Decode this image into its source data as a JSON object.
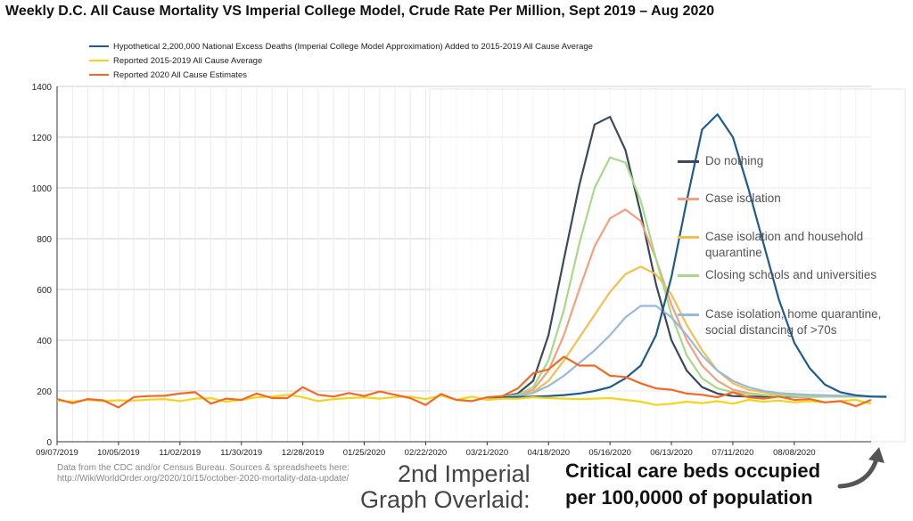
{
  "title": "Weekly D.C. All Cause Mortality VS Imperial College Model, Crude Rate Per Million, Sept 2019 – Aug 2020",
  "chart_data": {
    "type": "line",
    "title": "Weekly D.C. All Cause Mortality VS Imperial College Model, Crude Rate Per Million, Sept 2019 – Aug 2020",
    "ylim": [
      0,
      1400
    ],
    "yticks": [
      0,
      200,
      400,
      600,
      800,
      1000,
      1200,
      1400
    ],
    "grid": true,
    "legend_position": "top-left",
    "x_tick_labels": [
      "09/07/2019",
      "10/05/2019",
      "11/02/2019",
      "11/30/2019",
      "12/28/2019",
      "01/25/2020",
      "02/22/2020",
      "03/21/2020",
      "04/18/2020",
      "05/16/2020",
      "06/13/2020",
      "07/11/2020",
      "08/08/2020"
    ],
    "series": [
      {
        "name": "Hypothetical 2,200,000 National Excess Deaths (Imperial College Model Approximation) Added to 2015-2019 All Cause Average",
        "color": "#1f5b8c",
        "start_week": 28,
        "values": [
          175,
          175,
          176,
          178,
          180,
          184,
          190,
          200,
          215,
          250,
          300,
          420,
          650,
          950,
          1230,
          1290,
          1200,
          1000,
          780,
          560,
          390,
          290,
          225,
          195,
          183,
          178,
          177
        ]
      },
      {
        "name": "Reported 2015-2019 All Cause Average",
        "color": "#f2d41c",
        "start_week": 0,
        "values": [
          162,
          158,
          165,
          160,
          163,
          162,
          166,
          168,
          160,
          170,
          172,
          158,
          165,
          175,
          178,
          185,
          175,
          160,
          168,
          172,
          175,
          170,
          176,
          178,
          168,
          182,
          165,
          178,
          165,
          170,
          170,
          175,
          172,
          170,
          168,
          170,
          172,
          165,
          158,
          145,
          150,
          158,
          152,
          160,
          150,
          165,
          158,
          162,
          155,
          160,
          155,
          160,
          165,
          150
        ]
      },
      {
        "name": "Reported 2020 All Cause Estimates",
        "color": "#f06a25",
        "start_week": 0,
        "values": [
          168,
          152,
          168,
          163,
          135,
          176,
          180,
          181,
          190,
          195,
          150,
          170,
          165,
          190,
          172,
          172,
          215,
          185,
          178,
          192,
          180,
          198,
          185,
          172,
          145,
          188,
          165,
          160,
          175,
          180,
          210,
          270,
          285,
          335,
          300,
          300,
          260,
          255,
          230,
          210,
          205,
          190,
          185,
          175,
          195,
          175,
          170,
          178,
          165,
          168,
          155,
          160,
          140,
          165
        ]
      }
    ],
    "overlay": {
      "label": "2nd Imperial Graph Overlaid: Critical care beds occupied per 100,0000 of population",
      "series": [
        {
          "name": "Do nothing",
          "color": "#3a4a5a",
          "values": [
            175,
            178,
            190,
            240,
            420,
            720,
            1010,
            1250,
            1280,
            1150,
            900,
            620,
            400,
            280,
            215,
            190,
            180,
            178,
            178,
            178,
            178,
            178,
            178,
            178,
            178,
            178,
            178
          ]
        },
        {
          "name": "Case isolation",
          "color": "#f2a080",
          "values": [
            175,
            176,
            182,
            205,
            280,
            420,
            600,
            770,
            880,
            915,
            870,
            720,
            540,
            400,
            300,
            240,
            205,
            192,
            185,
            182,
            180,
            179,
            178,
            178,
            178,
            178,
            178
          ]
        },
        {
          "name": "Case isolation and household quarantine",
          "color": "#f2c050",
          "values": [
            175,
            176,
            180,
            195,
            240,
            320,
            410,
            500,
            590,
            660,
            690,
            660,
            580,
            460,
            360,
            280,
            230,
            205,
            195,
            188,
            184,
            182,
            180,
            179,
            178,
            178,
            178
          ]
        },
        {
          "name": "Closing schools and universities",
          "color": "#a8d98a",
          "values": [
            175,
            177,
            185,
            215,
            320,
            520,
            780,
            1000,
            1120,
            1100,
            950,
            720,
            500,
            340,
            250,
            210,
            195,
            188,
            184,
            182,
            180,
            179,
            178,
            178,
            178,
            178,
            178
          ]
        },
        {
          "name": "Case isolation, home quarantine, social distancing of >70s",
          "color": "#9ab8d8",
          "values": [
            175,
            176,
            180,
            192,
            220,
            260,
            310,
            360,
            420,
            490,
            535,
            535,
            490,
            420,
            340,
            280,
            240,
            215,
            200,
            192,
            188,
            185,
            183,
            181,
            180,
            179,
            178
          ]
        }
      ]
    }
  },
  "source_text": {
    "line1": "Data from the CDC and/or Census Bureau. Sources & spreadsheets here:",
    "line2": "http://WikiWorldOrder.org/2020/10/15/october-2020-mortality-data-update/"
  },
  "caption": {
    "line1": "2nd Imperial",
    "line2": "Graph Overlaid:"
  },
  "callout": {
    "line1": "Critical care beds occupied",
    "line2": "per 100,0000 of population"
  }
}
